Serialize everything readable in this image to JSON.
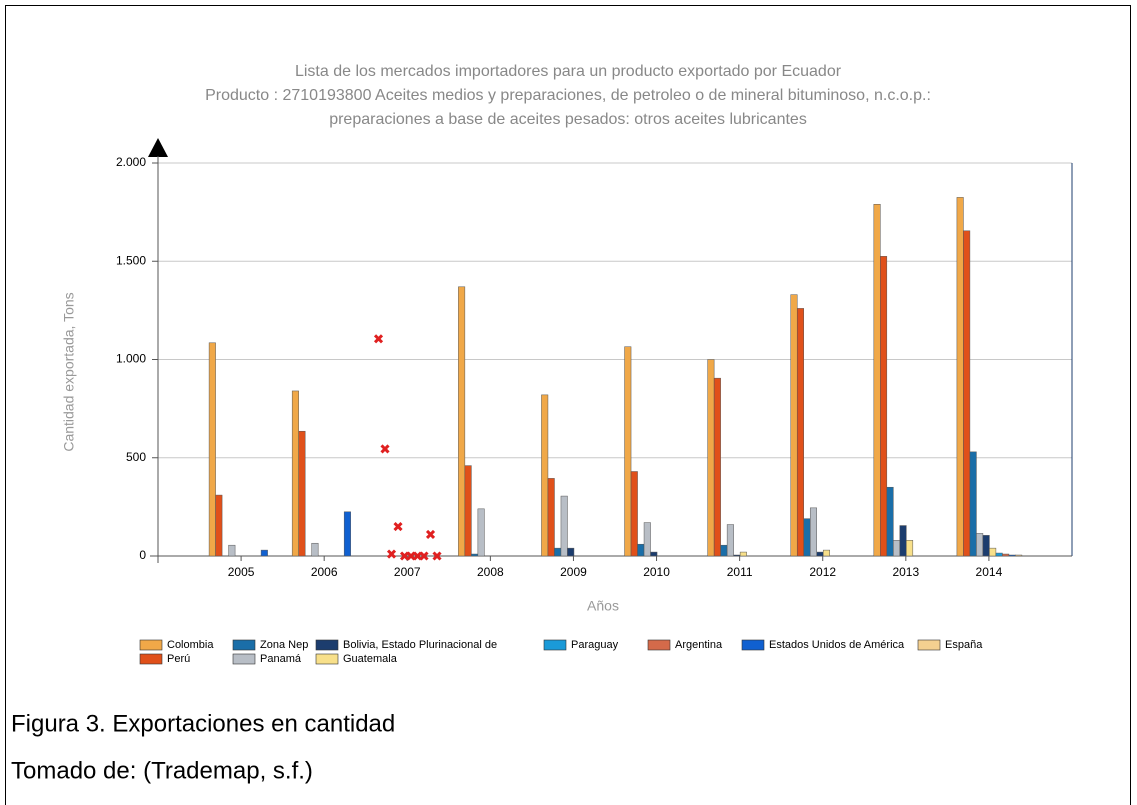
{
  "chart_data": {
    "type": "bar",
    "title": "Lista de los mercados importadores para un producto exportado por Ecuador",
    "subtitle": [
      "Producto : 2710193800 Aceites medios y preparaciones, de petroleo o de mineral bituminoso, n.c.o.p.:",
      "preparaciones a base de aceites pesados: otros aceites lubricantes"
    ],
    "x_label": "Años",
    "y_label": "Cantidad exportada, Tons",
    "categories": [
      "2005",
      "2006",
      "2007",
      "2008",
      "2009",
      "2010",
      "2011",
      "2012",
      "2013",
      "2014"
    ],
    "x_marker_category": "2007",
    "ylim": [
      0,
      2000
    ],
    "yticks": [
      0,
      500,
      {
        "value": 1000,
        "label": "1.000"
      },
      {
        "value": 1500,
        "label": "1.500"
      },
      {
        "value": 2000,
        "label": "2.000"
      }
    ],
    "grid": true,
    "series": [
      {
        "name": "Colombia",
        "color": "#f0a848",
        "values": [
          1085,
          840,
          1105,
          1370,
          820,
          1065,
          1000,
          1330,
          1790,
          1825
        ]
      },
      {
        "name": "Perú",
        "color": "#e0501a",
        "values": [
          310,
          635,
          545,
          460,
          395,
          430,
          905,
          1260,
          1525,
          1655
        ]
      },
      {
        "name": "Zona Nep",
        "color": "#1a6ea8",
        "values": [
          0,
          0,
          10,
          10,
          40,
          60,
          55,
          190,
          350,
          530
        ]
      },
      {
        "name": "Panamá",
        "color": "#b8bec6",
        "values": [
          55,
          65,
          150,
          240,
          305,
          170,
          160,
          245,
          80,
          115
        ]
      },
      {
        "name": "Bolivia, Estado Plurinacional de",
        "color": "#1c3d6e",
        "values": [
          0,
          0,
          0,
          0,
          40,
          20,
          5,
          20,
          155,
          105
        ]
      },
      {
        "name": "Guatemala",
        "color": "#f8e08a",
        "values": [
          0,
          0,
          0,
          0,
          0,
          0,
          20,
          30,
          80,
          40
        ]
      },
      {
        "name": "Paraguay",
        "color": "#1a9ad8",
        "values": [
          0,
          0,
          0,
          0,
          0,
          0,
          0,
          0,
          0,
          15
        ]
      },
      {
        "name": "Argentina",
        "color": "#d46a4a",
        "values": [
          0,
          0,
          0,
          0,
          0,
          0,
          0,
          0,
          0,
          10
        ]
      },
      {
        "name": "Estados Unidos de América",
        "color": "#1060d0",
        "values": [
          30,
          225,
          110,
          0,
          0,
          0,
          0,
          0,
          0,
          5
        ]
      },
      {
        "name": "España",
        "color": "#f4d090",
        "values": [
          0,
          0,
          0,
          0,
          0,
          0,
          0,
          0,
          0,
          5
        ]
      }
    ]
  },
  "caption": {
    "figure": "Figura 3. Exportaciones en cantidad",
    "source": "Tomado de: (Trademap, s.f.)"
  }
}
